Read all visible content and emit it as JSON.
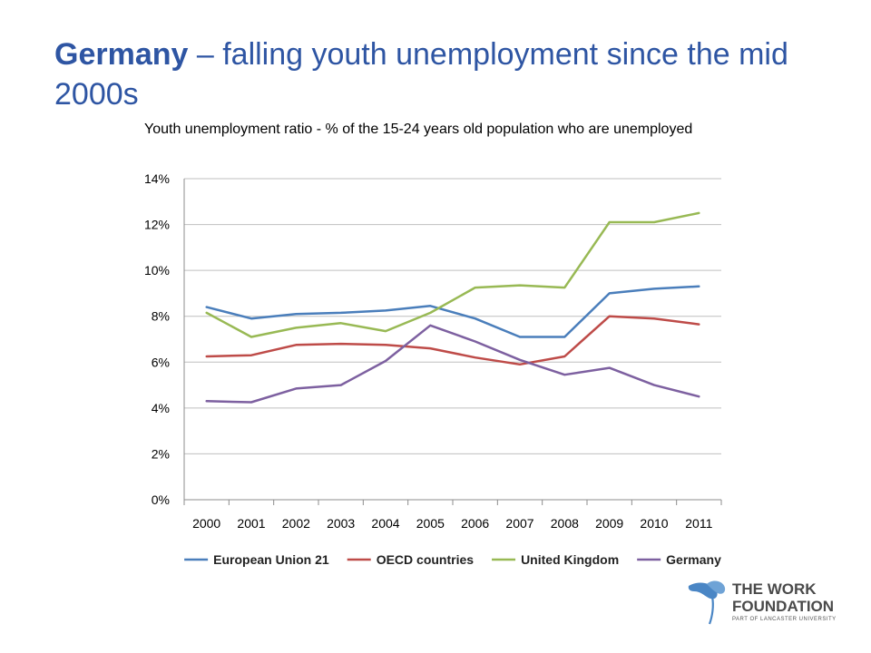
{
  "header": {
    "title_bold": "Germany",
    "title_rest": " – falling youth unemployment since the mid 2000s",
    "subtitle": "Youth unemployment ratio - % of the 15-24 years old population who are unemployed"
  },
  "chart_data": {
    "type": "line",
    "title": "",
    "xlabel": "",
    "ylabel": "",
    "x": [
      "2000",
      "2001",
      "2002",
      "2003",
      "2004",
      "2005",
      "2006",
      "2007",
      "2008",
      "2009",
      "2010",
      "2011"
    ],
    "ylim": [
      0,
      14
    ],
    "yticks": [
      "0%",
      "2%",
      "4%",
      "6%",
      "8%",
      "10%",
      "12%",
      "14%"
    ],
    "grid": true,
    "legend_position": "bottom",
    "series": [
      {
        "name": "European Union 21",
        "color": "#4a7ebb",
        "values": [
          8.4,
          7.9,
          8.1,
          8.15,
          8.25,
          8.45,
          7.9,
          7.1,
          7.1,
          9.0,
          9.2,
          9.3
        ]
      },
      {
        "name": "OECD countries",
        "color": "#be4b48",
        "values": [
          6.25,
          6.3,
          6.75,
          6.8,
          6.75,
          6.6,
          6.2,
          5.9,
          6.25,
          8.0,
          7.9,
          7.65
        ]
      },
      {
        "name": "United Kingdom",
        "color": "#98b954",
        "values": [
          8.15,
          7.1,
          7.5,
          7.7,
          7.35,
          8.15,
          9.25,
          9.35,
          9.25,
          12.1,
          12.1,
          12.5
        ]
      },
      {
        "name": "Germany",
        "color": "#7d60a0",
        "values": [
          4.3,
          4.25,
          4.85,
          5.0,
          6.05,
          7.6,
          6.9,
          6.1,
          5.45,
          5.75,
          5.0,
          4.5
        ]
      }
    ]
  },
  "logo": {
    "line1": "THE WORK",
    "line2": "FOUNDATION",
    "sub": "PART OF LANCASTER UNIVERSITY",
    "icon": "flower-logo-icon",
    "color": "#4a86c5"
  }
}
